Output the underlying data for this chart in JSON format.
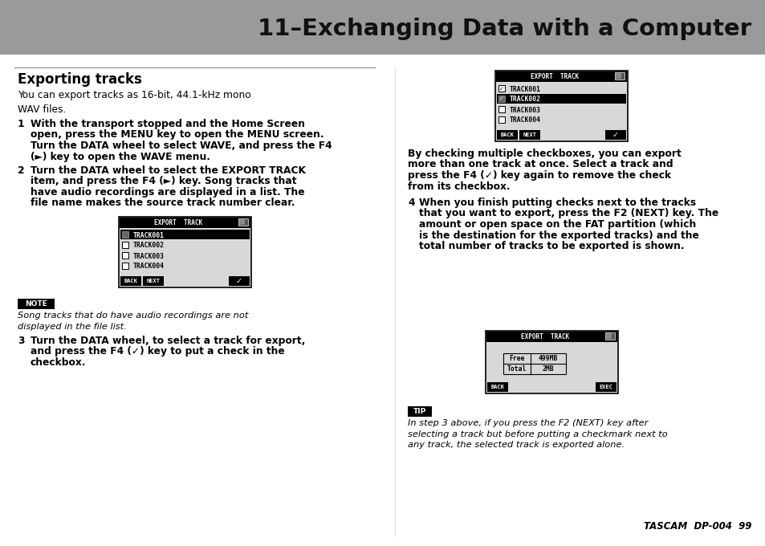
{
  "page_bg": "#ffffff",
  "header_bg": "#9a9a9a",
  "header_text": "11–Exchanging Data with a Computer",
  "header_text_color": "#111111",
  "header_fontsize": 21,
  "section_title": "Exporting tracks",
  "section_title_fontsize": 12,
  "body_fontsize": 8.8,
  "small_fontsize": 8.2,
  "body_text_color": "#000000",
  "note_body": "Song tracks that do have audio recordings are not\ndisplayed in the file list.",
  "tip_body": "In step 3 above, if you press the F2 (NEXT) key after\nselecting a track but before putting a checkmark next to\nany track, the selected track is exported alone.",
  "footer_text": "TASCAM  DP-004  99"
}
